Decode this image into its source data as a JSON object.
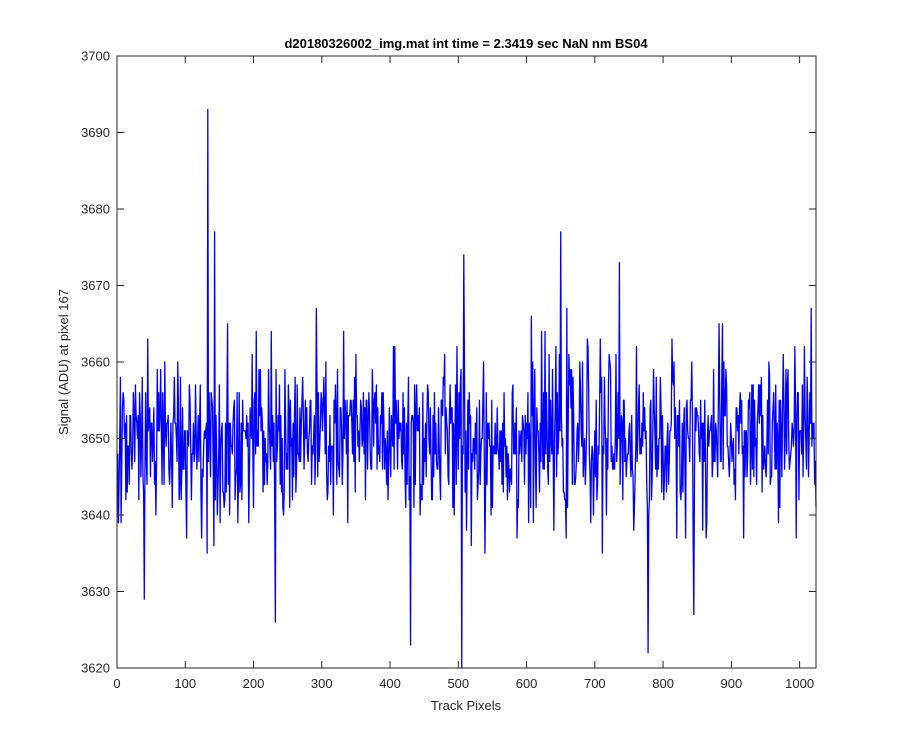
{
  "chart_data": {
    "type": "line",
    "title": "d20180326002_img.mat int time = 2.3419 sec  NaN nm BS04",
    "xlabel": "Track Pixels",
    "ylabel": "Signal (ADU) at pixel 167",
    "xlim": [
      0,
      1024
    ],
    "ylim": [
      3620,
      3700
    ],
    "xticks": [
      0,
      100,
      200,
      300,
      400,
      500,
      600,
      700,
      800,
      900,
      1000
    ],
    "yticks": [
      3620,
      3630,
      3640,
      3650,
      3660,
      3670,
      3680,
      3690,
      3700
    ],
    "grid": false,
    "series_color": "#0000ff",
    "series": [
      {
        "x_start": 1,
        "x_step": 1,
        "n_points": 1024,
        "mean": 3650,
        "noise_sd": 5.5,
        "notable_points": [
          {
            "x": 40,
            "y": 3629
          },
          {
            "x": 133,
            "y": 3693
          },
          {
            "x": 143,
            "y": 3677
          },
          {
            "x": 232,
            "y": 3626
          },
          {
            "x": 430,
            "y": 3623
          },
          {
            "x": 505,
            "y": 3620
          },
          {
            "x": 508,
            "y": 3674
          },
          {
            "x": 650,
            "y": 3677
          },
          {
            "x": 736,
            "y": 3673
          },
          {
            "x": 778,
            "y": 3622
          },
          {
            "x": 845,
            "y": 3627
          },
          {
            "x": 1017,
            "y": 3667
          }
        ]
      }
    ]
  }
}
